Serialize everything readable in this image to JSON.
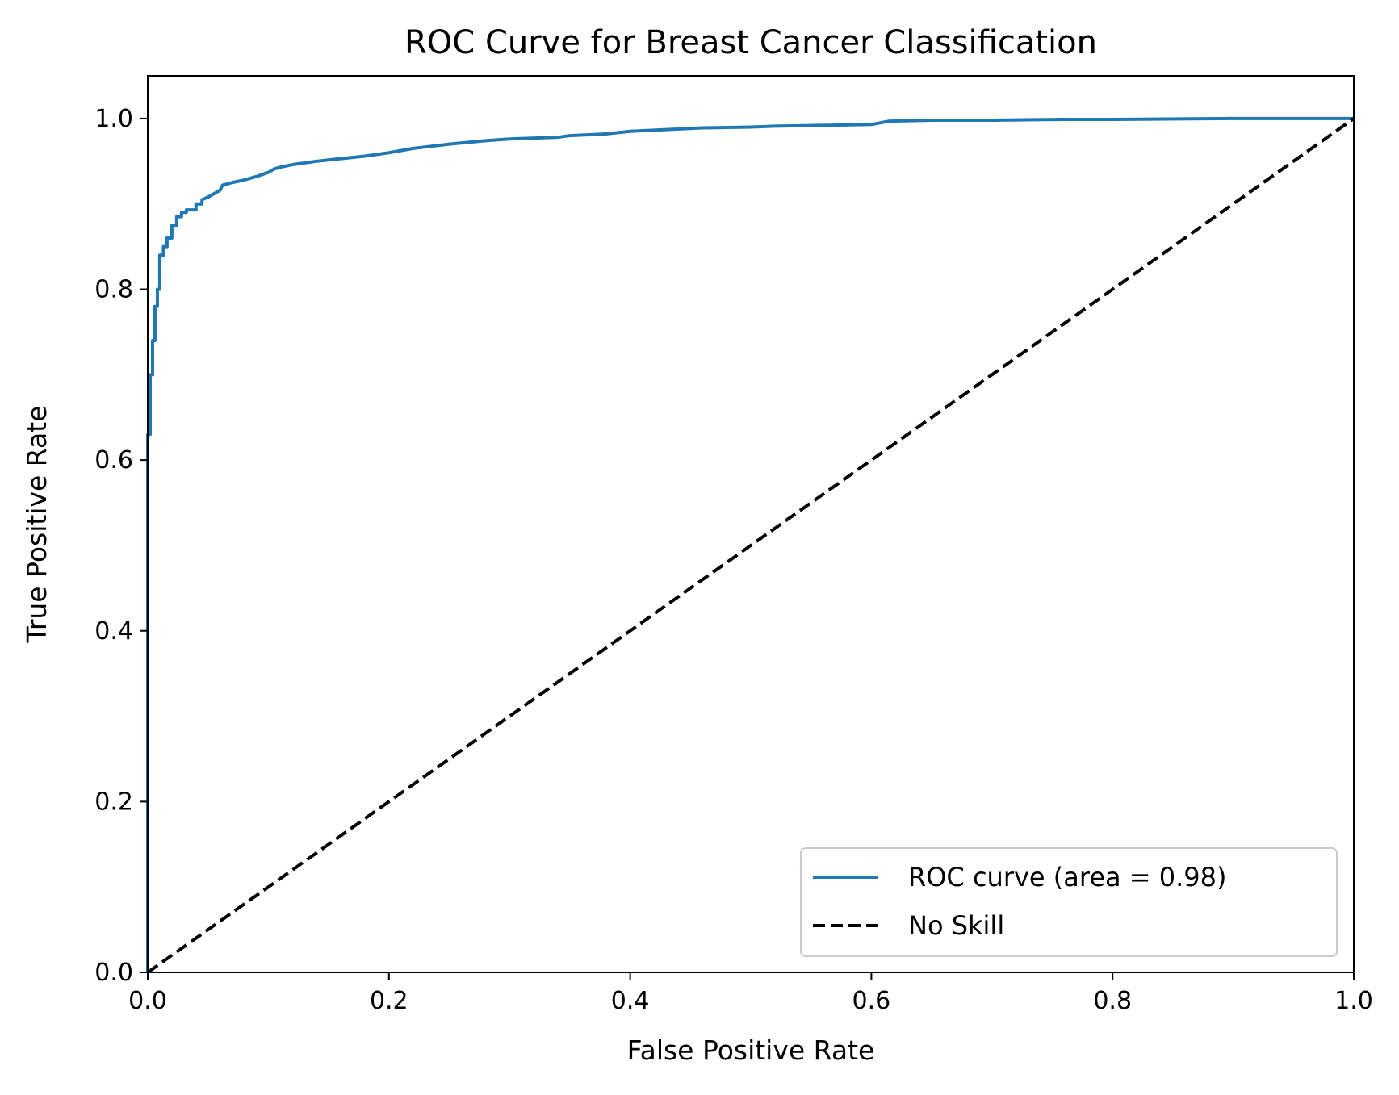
{
  "chart_data": {
    "type": "line",
    "title": "ROC Curve for Breast Cancer Classification",
    "xlabel": "False Positive Rate",
    "ylabel": "True Positive Rate",
    "xlim": [
      0.0,
      1.0
    ],
    "ylim": [
      0.0,
      1.05
    ],
    "xticks": [
      "0.0",
      "0.2",
      "0.4",
      "0.6",
      "0.8",
      "1.0"
    ],
    "yticks": [
      "0.0",
      "0.2",
      "0.4",
      "0.6",
      "0.8",
      "1.0"
    ],
    "grid": false,
    "legend_position": "lower-right",
    "series": [
      {
        "name": "ROC curve (area = 0.98)",
        "color": "#1f77b4",
        "style": "solid",
        "x": [
          0.0,
          0.0,
          0.002,
          0.002,
          0.004,
          0.004,
          0.006,
          0.006,
          0.008,
          0.008,
          0.01,
          0.01,
          0.013,
          0.013,
          0.016,
          0.016,
          0.02,
          0.02,
          0.024,
          0.024,
          0.028,
          0.028,
          0.032,
          0.032,
          0.036,
          0.036,
          0.04,
          0.04,
          0.045,
          0.045,
          0.05,
          0.055,
          0.06,
          0.062,
          0.065,
          0.07,
          0.08,
          0.09,
          0.1,
          0.105,
          0.11,
          0.12,
          0.13,
          0.14,
          0.16,
          0.18,
          0.2,
          0.22,
          0.25,
          0.28,
          0.3,
          0.34,
          0.35,
          0.38,
          0.4,
          0.43,
          0.46,
          0.5,
          0.52,
          0.56,
          0.6,
          0.615,
          0.65,
          0.7,
          0.76,
          0.8,
          0.9,
          1.0
        ],
        "y": [
          0.0,
          0.63,
          0.63,
          0.7,
          0.7,
          0.74,
          0.74,
          0.78,
          0.78,
          0.8,
          0.8,
          0.84,
          0.84,
          0.85,
          0.85,
          0.86,
          0.86,
          0.875,
          0.875,
          0.885,
          0.885,
          0.89,
          0.89,
          0.893,
          0.893,
          0.893,
          0.893,
          0.9,
          0.9,
          0.905,
          0.908,
          0.912,
          0.916,
          0.922,
          0.923,
          0.925,
          0.928,
          0.932,
          0.937,
          0.941,
          0.943,
          0.946,
          0.948,
          0.95,
          0.953,
          0.956,
          0.96,
          0.965,
          0.97,
          0.974,
          0.976,
          0.978,
          0.98,
          0.982,
          0.985,
          0.987,
          0.989,
          0.99,
          0.991,
          0.992,
          0.993,
          0.997,
          0.998,
          0.998,
          0.999,
          0.999,
          1.0,
          1.0
        ]
      },
      {
        "name": "No Skill",
        "color": "#000000",
        "style": "dashed",
        "x": [
          0.0,
          1.0
        ],
        "y": [
          0.0,
          1.0
        ]
      }
    ]
  }
}
